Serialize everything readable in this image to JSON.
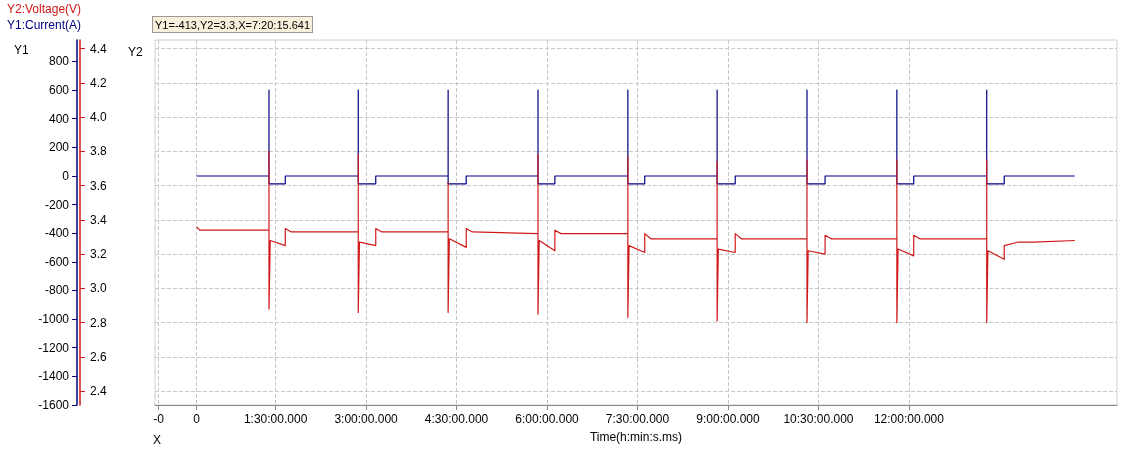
{
  "chart_data": {
    "type": "line",
    "xlabel": "Time(h:min:s.ms)",
    "ylabel": "Y1",
    "y2label": "Y2",
    "annotations": [
      "Y1=-413,Y2=3.3,X=7:20:15.641",
      "X"
    ],
    "xlim": [
      -0.5,
      15.45
    ],
    "xticks": [
      {
        "value": -0.44,
        "label": "-0"
      },
      {
        "value": 0.19,
        "label": "0"
      },
      {
        "value": 1.5,
        "label": "1:30:00.000"
      },
      {
        "value": 3,
        "label": "3:00:00.000"
      },
      {
        "value": 4.5,
        "label": "4:30:00.000"
      },
      {
        "value": 6,
        "label": "6:00:00.000"
      },
      {
        "value": 7.5,
        "label": "7:30:00.000"
      },
      {
        "value": 9,
        "label": "9:00:00.000"
      },
      {
        "value": 10.5,
        "label": "10:30:00.000"
      },
      {
        "value": 12,
        "label": "12:00:00.000"
      }
    ],
    "ylim": [
      -1600,
      950
    ],
    "yticks": [
      -1600,
      -1400,
      -1200,
      -1000,
      -800,
      -600,
      -400,
      -200,
      0,
      200,
      400,
      600,
      800
    ],
    "y2lim": [
      2.32,
      4.45
    ],
    "y2ticks": [
      {
        "value": 2.4,
        "label": "2.4"
      },
      {
        "value": 2.6,
        "label": "2.6"
      },
      {
        "value": 2.8,
        "label": "2.8"
      },
      {
        "value": 3,
        "label": "3.0"
      },
      {
        "value": 3.2,
        "label": "3.2"
      },
      {
        "value": 3.4,
        "label": "3.4"
      },
      {
        "value": 3.6,
        "label": "3.6"
      },
      {
        "value": 3.8,
        "label": "3.8"
      },
      {
        "value": 4,
        "label": "4.0"
      },
      {
        "value": 4.2,
        "label": "4.2"
      },
      {
        "value": 4.4,
        "label": "4.4"
      }
    ],
    "grid": true,
    "legend": "top left",
    "marker": "none",
    "line_style": "solid",
    "series": [
      {
        "name": "Y2:Voltage(V)",
        "color": "#d01818",
        "axis": "y2",
        "x": [
          0.19,
          0.24,
          1.39,
          1.39,
          1.39,
          1.41,
          1.66,
          1.66,
          1.76,
          2.87,
          2.87,
          2.87,
          2.89,
          3.16,
          3.16,
          3.26,
          4.36,
          4.36,
          4.36,
          4.38,
          4.66,
          4.66,
          4.76,
          5.85,
          5.85,
          5.85,
          5.87,
          6.13,
          6.13,
          6.23,
          7.34,
          7.34,
          7.34,
          7.36,
          7.62,
          7.62,
          7.72,
          8.82,
          8.82,
          8.82,
          8.84,
          9.12,
          9.12,
          9.22,
          10.31,
          10.31,
          10.31,
          10.33,
          10.61,
          10.61,
          10.71,
          11.8,
          11.8,
          11.8,
          11.82,
          12.08,
          12.08,
          12.18,
          13.29,
          13.29,
          13.29,
          13.31,
          13.58,
          13.58,
          13.8,
          14.07,
          14.75
        ],
        "values": [
          3.36,
          3.34,
          3.34,
          3.8,
          2.88,
          3.28,
          3.25,
          3.35,
          3.33,
          3.33,
          3.78,
          2.86,
          3.27,
          3.25,
          3.35,
          3.33,
          3.33,
          3.62,
          2.86,
          3.29,
          3.24,
          3.35,
          3.33,
          3.32,
          3.78,
          2.85,
          3.28,
          3.22,
          3.34,
          3.32,
          3.32,
          3.77,
          2.83,
          3.25,
          3.21,
          3.32,
          3.29,
          3.29,
          3.74,
          2.81,
          3.23,
          3.21,
          3.32,
          3.29,
          3.29,
          3.75,
          2.8,
          3.22,
          3.2,
          3.31,
          3.29,
          3.29,
          3.75,
          2.8,
          3.23,
          3.19,
          3.31,
          3.29,
          3.29,
          3.75,
          2.8,
          3.22,
          3.17,
          3.25,
          3.27,
          3.27,
          3.28
        ]
      },
      {
        "name": "Y1:Current(A)",
        "color": "#000080",
        "x": [
          0.19,
          1.39,
          1.39,
          1.39,
          1.66,
          1.66,
          2.87,
          2.87,
          2.87,
          3.16,
          3.16,
          4.36,
          4.36,
          4.36,
          4.66,
          4.66,
          5.85,
          5.85,
          5.85,
          6.13,
          6.13,
          7.34,
          7.34,
          7.34,
          7.62,
          7.62,
          8.82,
          8.82,
          8.82,
          9.12,
          9.12,
          10.31,
          10.31,
          10.31,
          10.61,
          10.61,
          11.8,
          11.8,
          11.8,
          12.08,
          12.08,
          13.29,
          13.29,
          13.29,
          13.58,
          13.58,
          14.75
        ],
        "values": [
          0,
          0,
          600,
          -55,
          -55,
          0,
          0,
          600,
          -55,
          -55,
          0,
          0,
          600,
          -55,
          -55,
          0,
          0,
          600,
          -55,
          -55,
          0,
          0,
          600,
          -55,
          -55,
          0,
          0,
          600,
          -55,
          -55,
          0,
          0,
          600,
          -55,
          -55,
          0,
          0,
          600,
          -55,
          -55,
          0,
          0,
          600,
          -55,
          -55,
          0,
          0
        ]
      }
    ]
  }
}
